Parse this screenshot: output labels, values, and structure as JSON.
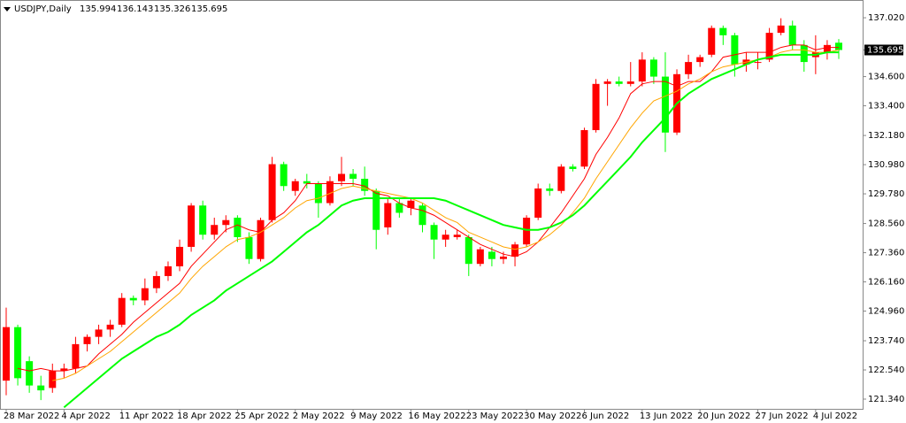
{
  "chart_data": {
    "type": "candlestick",
    "title": "USDJPY,Daily",
    "up_color": "#ff0000",
    "down_color": "#00ff00",
    "categories": [
      "28 Mar 2022",
      null,
      null,
      null,
      null,
      "4 Apr 2022",
      null,
      null,
      null,
      null,
      "11 Apr 2022",
      null,
      null,
      null,
      null,
      "18 Apr 2022",
      null,
      null,
      null,
      null,
      "25 Apr 2022",
      null,
      null,
      null,
      null,
      "2 May 2022",
      null,
      null,
      null,
      null,
      "9 May 2022",
      null,
      null,
      null,
      null,
      "16 May 2022",
      null,
      null,
      null,
      null,
      "23 May 2022",
      null,
      null,
      null,
      null,
      "30 May 2022",
      null,
      null,
      null,
      null,
      "6 Jun 2022",
      null,
      null,
      null,
      null,
      "13 Jun 2022",
      null,
      null,
      null,
      null,
      "20 Jun 2022",
      null,
      null,
      null,
      null,
      "27 Jun 2022",
      null,
      null,
      null,
      null,
      "4 Jul 2022",
      null,
      null
    ],
    "candles": {
      "open": [
        122.1,
        124.3,
        122.9,
        121.9,
        121.8,
        122.5,
        122.6,
        123.6,
        123.9,
        124.2,
        124.4,
        125.5,
        125.4,
        125.9,
        126.4,
        126.8,
        127.6,
        129.3,
        128.1,
        128.5,
        128.8,
        128.0,
        127.1,
        128.7,
        131.0,
        129.9,
        130.3,
        130.2,
        129.4,
        130.3,
        130.6,
        130.4,
        129.9,
        128.4,
        129.4,
        129.2,
        129.3,
        128.5,
        127.9,
        128.0,
        128.0,
        126.9,
        127.4,
        127.1,
        127.2,
        127.7,
        128.8,
        130.0,
        129.9,
        130.9,
        130.9,
        132.4,
        134.3,
        134.4,
        134.3,
        134.4,
        135.3,
        134.6,
        132.3,
        134.7,
        135.2,
        135.5,
        136.6,
        136.3,
        135.1,
        135.2,
        135.3,
        136.4,
        136.7,
        135.9,
        135.4,
        135.6,
        135.994
      ],
      "high": [
        125.1,
        124.4,
        123.1,
        122.3,
        122.8,
        122.8,
        123.9,
        124.0,
        124.4,
        124.6,
        125.7,
        125.6,
        126.3,
        126.6,
        127.0,
        127.9,
        129.4,
        129.5,
        128.8,
        128.9,
        128.9,
        128.2,
        128.8,
        131.3,
        131.1,
        130.4,
        130.6,
        130.3,
        130.5,
        131.3,
        130.8,
        130.9,
        130.0,
        129.6,
        129.6,
        129.6,
        129.4,
        128.6,
        128.3,
        128.3,
        128.1,
        127.6,
        127.6,
        127.4,
        127.8,
        128.9,
        130.2,
        130.2,
        131.0,
        131.0,
        132.5,
        134.5,
        134.5,
        134.6,
        135.2,
        135.6,
        135.4,
        135.6,
        134.9,
        135.5,
        135.5,
        136.7,
        136.7,
        136.4,
        135.6,
        135.6,
        136.6,
        137.0,
        136.9,
        136.1,
        136.3,
        136.1,
        136.143
      ],
      "low": [
        121.5,
        121.9,
        121.6,
        121.3,
        121.6,
        122.2,
        122.4,
        123.3,
        123.6,
        123.9,
        124.3,
        125.2,
        125.2,
        125.7,
        126.2,
        126.6,
        127.4,
        127.9,
        127.9,
        128.2,
        127.8,
        126.9,
        127.0,
        128.6,
        129.9,
        129.7,
        130.0,
        128.8,
        129.3,
        130.1,
        130.1,
        129.7,
        127.5,
        128.1,
        128.8,
        128.9,
        128.2,
        127.1,
        127.6,
        127.9,
        126.4,
        126.8,
        126.8,
        126.9,
        126.8,
        127.6,
        128.7,
        129.7,
        129.8,
        130.7,
        130.8,
        132.3,
        133.4,
        134.2,
        134.2,
        134.2,
        134.3,
        131.5,
        132.2,
        134.5,
        135.0,
        135.4,
        135.9,
        134.6,
        134.8,
        134.9,
        135.2,
        136.3,
        135.7,
        134.8,
        134.7,
        135.3,
        135.326
      ],
      "close": [
        124.3,
        122.2,
        121.9,
        121.7,
        122.5,
        122.6,
        123.6,
        123.9,
        124.2,
        124.4,
        125.5,
        125.4,
        125.9,
        126.4,
        126.8,
        127.6,
        129.3,
        128.1,
        128.5,
        128.7,
        128.0,
        127.1,
        128.7,
        131.0,
        130.1,
        130.3,
        130.2,
        129.4,
        130.3,
        130.6,
        130.4,
        129.9,
        128.3,
        129.4,
        129.0,
        129.5,
        128.5,
        127.9,
        128.1,
        128.1,
        126.9,
        127.5,
        127.1,
        127.2,
        127.7,
        128.8,
        130.0,
        129.9,
        130.9,
        130.8,
        132.4,
        134.3,
        134.4,
        134.3,
        134.4,
        135.3,
        134.6,
        132.3,
        134.7,
        135.2,
        135.4,
        136.6,
        136.3,
        135.1,
        135.3,
        135.2,
        136.4,
        136.7,
        135.9,
        135.2,
        135.6,
        135.9,
        135.695
      ]
    },
    "series": [
      {
        "color": "#ff0000",
        "width": 1,
        "values": [
          null,
          122.6,
          122.5,
          122.6,
          122.5,
          122.5,
          122.6,
          122.7,
          123.2,
          123.6,
          124.0,
          124.5,
          124.9,
          125.3,
          125.7,
          126.1,
          126.8,
          127.3,
          127.8,
          128.3,
          128.5,
          128.3,
          128.2,
          128.7,
          129.0,
          129.5,
          130.2,
          130.2,
          130.2,
          130.2,
          130.2,
          130.1,
          129.8,
          129.7,
          129.4,
          129.2,
          129.1,
          128.9,
          128.6,
          128.3,
          128.0,
          127.7,
          127.5,
          127.3,
          127.2,
          127.4,
          127.8,
          128.4,
          129.0,
          129.7,
          130.4,
          131.4,
          132.1,
          132.9,
          133.9,
          134.3,
          134.4,
          134.4,
          134.2,
          134.4,
          134.4,
          134.8,
          135.4,
          135.5,
          135.6,
          135.6,
          135.6,
          135.8,
          135.9,
          135.9,
          135.7,
          135.8,
          135.8
        ]
      },
      {
        "color": "#ffa500",
        "width": 1,
        "values": [
          null,
          null,
          null,
          null,
          122.1,
          122.2,
          122.4,
          122.7,
          123.0,
          123.3,
          123.7,
          124.1,
          124.5,
          124.9,
          125.3,
          125.7,
          126.3,
          126.8,
          127.2,
          127.6,
          127.9,
          128.0,
          128.2,
          128.5,
          128.8,
          129.2,
          129.5,
          129.6,
          129.8,
          130.0,
          130.1,
          130.0,
          129.9,
          129.8,
          129.7,
          129.6,
          129.4,
          129.1,
          128.8,
          128.6,
          128.2,
          128.0,
          127.8,
          127.6,
          127.5,
          127.6,
          127.8,
          128.1,
          128.5,
          129.0,
          129.6,
          130.4,
          131.1,
          131.8,
          132.5,
          133.1,
          133.6,
          133.8,
          134.0,
          134.3,
          134.5,
          134.8,
          135.0,
          135.1,
          135.2,
          135.3,
          135.4,
          135.6,
          135.7,
          135.7,
          135.6,
          135.6,
          135.7
        ]
      },
      {
        "color": "#00ff00",
        "width": 2,
        "values": [
          null,
          null,
          null,
          null,
          null,
          121.0,
          121.4,
          121.8,
          122.2,
          122.6,
          123.0,
          123.3,
          123.6,
          123.9,
          124.1,
          124.4,
          124.8,
          125.1,
          125.4,
          125.8,
          126.1,
          126.4,
          126.7,
          127.0,
          127.4,
          127.8,
          128.2,
          128.5,
          128.9,
          129.3,
          129.5,
          129.6,
          129.6,
          129.6,
          129.6,
          129.6,
          129.6,
          129.6,
          129.5,
          129.3,
          129.1,
          128.9,
          128.7,
          128.5,
          128.4,
          128.3,
          128.3,
          128.4,
          128.6,
          128.9,
          129.3,
          129.8,
          130.3,
          130.8,
          131.3,
          131.9,
          132.4,
          132.9,
          133.5,
          133.9,
          134.2,
          134.5,
          134.7,
          134.9,
          135.1,
          135.3,
          135.4,
          135.5,
          135.5,
          135.5,
          135.5,
          135.6,
          135.6
        ]
      }
    ],
    "ylim": [
      120.94,
      137.75
    ],
    "yticks": [
      {
        "value": 137.02,
        "label": "137.020"
      },
      {
        "value": 134.6,
        "label": "134.600"
      },
      {
        "value": 133.4,
        "label": "133.400"
      },
      {
        "value": 132.18,
        "label": "132.180"
      },
      {
        "value": 130.98,
        "label": "130.980"
      },
      {
        "value": 129.78,
        "label": "129.780"
      },
      {
        "value": 128.56,
        "label": "128.560"
      },
      {
        "value": 127.36,
        "label": "127.360"
      },
      {
        "value": 126.16,
        "label": "126.160"
      },
      {
        "value": 124.96,
        "label": "124.960"
      },
      {
        "value": 123.74,
        "label": "123.740"
      },
      {
        "value": 122.54,
        "label": "122.540"
      },
      {
        "value": 121.34,
        "label": "121.340"
      }
    ]
  }
}
